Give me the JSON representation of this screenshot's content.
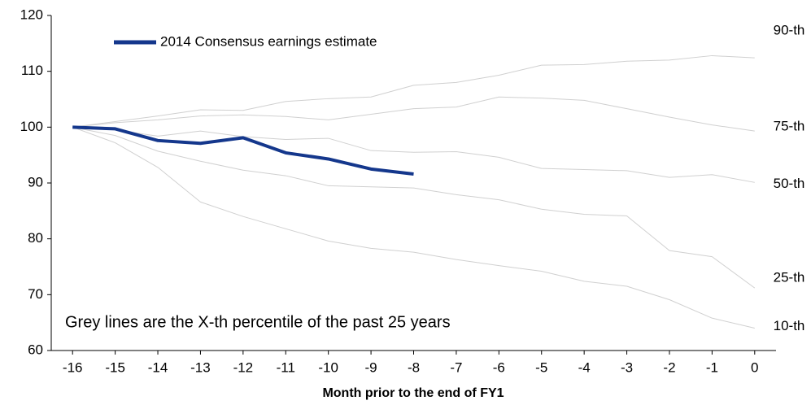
{
  "chart_data": {
    "type": "line",
    "x_label": "Month prior to the end of FY1",
    "annotation": "Grey lines are the X-th percentile of the past 25 years",
    "x": [
      -16,
      -15,
      -14,
      -13,
      -12,
      -11,
      -10,
      -9,
      -8,
      -7,
      -6,
      -5,
      -4,
      -3,
      -2,
      -1,
      0
    ],
    "xlim": [
      -16.5,
      0.5
    ],
    "xticks": [
      -16,
      -15,
      -14,
      -13,
      -12,
      -11,
      -10,
      -9,
      -8,
      -7,
      -6,
      -5,
      -4,
      -3,
      -2,
      -1,
      0
    ],
    "ylim": [
      60,
      120
    ],
    "yticks": [
      60,
      70,
      80,
      90,
      100,
      110,
      120
    ],
    "series": [
      {
        "name": "90-th",
        "color": "#d0d0d0",
        "values": [
          100,
          101,
          102,
          103.1,
          103,
          104.6,
          105.1,
          105.4,
          107.5,
          108,
          109.3,
          111.1,
          111.2,
          111.8,
          112,
          112.8,
          112.4
        ]
      },
      {
        "name": "75-th",
        "color": "#d0d0d0",
        "values": [
          100,
          100.8,
          101.3,
          102,
          102.2,
          101.9,
          101.3,
          102.3,
          103.3,
          103.6,
          105.4,
          105.2,
          104.8,
          103.3,
          101.8,
          100.4,
          99.3
        ]
      },
      {
        "name": "50-th",
        "color": "#d0d0d0",
        "values": [
          100,
          99.5,
          98.4,
          99.3,
          98.3,
          97.8,
          98,
          95.8,
          95.5,
          95.6,
          94.6,
          92.6,
          92.4,
          92.2,
          91,
          91.5,
          90.1
        ]
      },
      {
        "name": "25-th",
        "color": "#d0d0d0",
        "values": [
          100,
          98.5,
          95.7,
          93.9,
          92.3,
          91.3,
          89.5,
          89.3,
          89.1,
          87.9,
          87,
          85.3,
          84.4,
          84.1,
          77.9,
          76.8,
          71.2
        ]
      },
      {
        "name": "10-th",
        "color": "#d0d0d0",
        "values": [
          100,
          97.2,
          92.8,
          86.6,
          84,
          81.8,
          79.6,
          78.3,
          77.6,
          76.3,
          75.2,
          74.2,
          72.4,
          71.5,
          69.1,
          65.8,
          64
        ]
      },
      {
        "name": "2014 Consensus earnings estimate",
        "color": "#14378c",
        "values": [
          100,
          99.7,
          97.6,
          97.1,
          98.1,
          95.4,
          94.3,
          92.5,
          91.6,
          null,
          null,
          null,
          null,
          null,
          null,
          null,
          null
        ]
      }
    ]
  }
}
